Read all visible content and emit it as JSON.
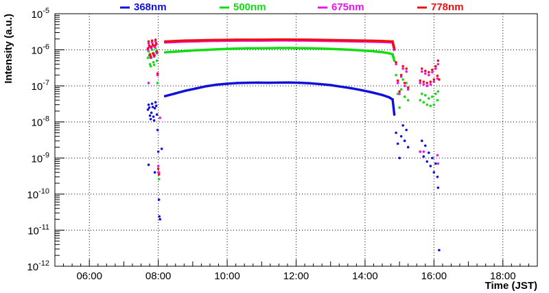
{
  "chart_data": {
    "type": "scatter",
    "xlabel": "Time (JST)",
    "ylabel": "Intensity (a.u.)",
    "x_unit": "hour",
    "xlim": [
      5.0,
      19.0
    ],
    "ylim": [
      1e-12,
      1e-05
    ],
    "y_scale": "log",
    "grid": true,
    "legend_position": "top",
    "x_ticks": [
      {
        "value": 6,
        "label": "06:00"
      },
      {
        "value": 8,
        "label": "08:00"
      },
      {
        "value": 10,
        "label": "10:00"
      },
      {
        "value": 12,
        "label": "12:00"
      },
      {
        "value": 14,
        "label": "14:00"
      },
      {
        "value": 16,
        "label": "16:00"
      },
      {
        "value": 18,
        "label": "18:00"
      }
    ],
    "y_ticks": [
      {
        "value": 1e-12,
        "base": "10",
        "exp": "-12"
      },
      {
        "value": 1e-11,
        "base": "10",
        "exp": "-11"
      },
      {
        "value": 1e-10,
        "base": "10",
        "exp": "-10"
      },
      {
        "value": 1e-09,
        "base": "10",
        "exp": "-9"
      },
      {
        "value": 1e-08,
        "base": "10",
        "exp": "-8"
      },
      {
        "value": 1e-07,
        "base": "10",
        "exp": "-7"
      },
      {
        "value": 1e-06,
        "base": "10",
        "exp": "-6"
      },
      {
        "value": 1e-05,
        "base": "10",
        "exp": "-5"
      }
    ],
    "series": [
      {
        "name": "368nm",
        "color": "#1010dd",
        "points": [
          [
            7.7,
            2.2e-08
          ],
          [
            7.72,
            3e-08
          ],
          [
            7.74,
            2.5e-08
          ],
          [
            7.76,
            1.5e-08
          ],
          [
            7.78,
            1.2e-08
          ],
          [
            7.8,
            1.8e-08
          ],
          [
            7.82,
            3.2e-08
          ],
          [
            7.84,
            2.6e-08
          ],
          [
            7.86,
            1.4e-08
          ],
          [
            7.88,
            1.1e-08
          ],
          [
            7.9,
            2.4e-08
          ],
          [
            7.92,
            3.5e-08
          ],
          [
            7.94,
            2.8e-08
          ],
          [
            7.96,
            1.6e-08
          ],
          [
            7.98,
            6e-09
          ],
          [
            8.0,
            1.5e-09
          ],
          [
            8.02,
            7e-11
          ],
          [
            8.03,
            2.4e-11
          ],
          [
            8.05,
            2e-11
          ],
          [
            7.72,
            6.5e-10
          ],
          [
            7.9,
            4e-10
          ],
          [
            8.1,
            1.8e-09
          ],
          [
            8.2,
            5.2e-08
          ],
          [
            8.5,
            6.2e-08
          ],
          [
            8.8,
            7.4e-08
          ],
          [
            9.1,
            8.5e-08
          ],
          [
            9.4,
            9.8e-08
          ],
          [
            9.7,
            1.08e-07
          ],
          [
            10.0,
            1.15e-07
          ],
          [
            10.3,
            1.2e-07
          ],
          [
            10.6,
            1.22e-07
          ],
          [
            10.9,
            1.23e-07
          ],
          [
            11.2,
            1.22e-07
          ],
          [
            11.5,
            1.23e-07
          ],
          [
            11.8,
            1.24e-07
          ],
          [
            12.1,
            1.22e-07
          ],
          [
            12.4,
            1.18e-07
          ],
          [
            12.7,
            1.12e-07
          ],
          [
            13.0,
            1.05e-07
          ],
          [
            13.3,
            9.5e-08
          ],
          [
            13.6,
            8.6e-08
          ],
          [
            13.9,
            7.6e-08
          ],
          [
            14.2,
            6.6e-08
          ],
          [
            14.5,
            5.6e-08
          ],
          [
            14.7,
            4.8e-08
          ],
          [
            14.8,
            4.2e-08
          ],
          [
            14.85,
            1.6e-08
          ],
          [
            14.9,
            5e-09
          ],
          [
            14.95,
            2.5e-09
          ],
          [
            15.0,
            1e-09
          ],
          [
            15.05,
            4e-09
          ],
          [
            15.1,
            8e-09
          ],
          [
            15.15,
            3e-09
          ],
          [
            15.2,
            6e-09
          ],
          [
            15.25,
            2e-09
          ],
          [
            15.6,
            1.5e-09
          ],
          [
            15.65,
            3e-09
          ],
          [
            15.7,
            1.1e-09
          ],
          [
            15.75,
            2.2e-09
          ],
          [
            15.8,
            8e-10
          ],
          [
            15.85,
            1.4e-09
          ],
          [
            15.9,
            6e-10
          ],
          [
            15.95,
            1e-09
          ],
          [
            16.0,
            4e-10
          ],
          [
            16.05,
            7e-10
          ],
          [
            16.1,
            3e-10
          ],
          [
            16.12,
            1.5e-10
          ],
          [
            16.15,
            2.8e-12
          ]
        ]
      },
      {
        "name": "500nm",
        "color": "#10dd10",
        "points": [
          [
            7.7,
            6e-07
          ],
          [
            7.72,
            9e-07
          ],
          [
            7.74,
            7e-07
          ],
          [
            7.76,
            4e-07
          ],
          [
            7.78,
            3.5e-07
          ],
          [
            7.8,
            6e-07
          ],
          [
            7.82,
            1e-06
          ],
          [
            7.84,
            8e-07
          ],
          [
            7.86,
            4.5e-07
          ],
          [
            7.88,
            3.8e-07
          ],
          [
            7.9,
            7e-07
          ],
          [
            7.92,
            1.1e-06
          ],
          [
            7.94,
            9e-07
          ],
          [
            7.96,
            5e-07
          ],
          [
            7.98,
            1.2e-07
          ],
          [
            8.0,
            4e-10
          ],
          [
            8.02,
            2.6e-10
          ],
          [
            8.2,
            8.5e-07
          ],
          [
            8.5,
            8.9e-07
          ],
          [
            8.8,
            9.3e-07
          ],
          [
            9.1,
            9.7e-07
          ],
          [
            9.4,
            1e-06
          ],
          [
            9.7,
            1.03e-06
          ],
          [
            10.0,
            1.06e-06
          ],
          [
            10.3,
            1.08e-06
          ],
          [
            10.6,
            1.1e-06
          ],
          [
            10.9,
            1.1e-06
          ],
          [
            11.2,
            1.11e-06
          ],
          [
            11.5,
            1.12e-06
          ],
          [
            11.8,
            1.12e-06
          ],
          [
            12.1,
            1.11e-06
          ],
          [
            12.4,
            1.1e-06
          ],
          [
            12.7,
            1.08e-06
          ],
          [
            13.0,
            1.06e-06
          ],
          [
            13.3,
            1.03e-06
          ],
          [
            13.6,
            1e-06
          ],
          [
            13.9,
            9.6e-07
          ],
          [
            14.2,
            9.2e-07
          ],
          [
            14.5,
            8.6e-07
          ],
          [
            14.7,
            8e-07
          ],
          [
            14.8,
            7.5e-07
          ],
          [
            14.85,
            5e-07
          ],
          [
            14.9,
            2e-07
          ],
          [
            14.95,
            6e-08
          ],
          [
            15.0,
            2.5e-08
          ],
          [
            15.05,
            8e-08
          ],
          [
            15.1,
            1.5e-07
          ],
          [
            15.15,
            5e-08
          ],
          [
            15.2,
            1.2e-07
          ],
          [
            15.25,
            4e-08
          ],
          [
            15.6,
            4e-08
          ],
          [
            15.65,
            6e-08
          ],
          [
            15.7,
            3.5e-08
          ],
          [
            15.75,
            5.5e-08
          ],
          [
            15.8,
            3e-08
          ],
          [
            15.85,
            4.5e-08
          ],
          [
            15.9,
            2.8e-08
          ],
          [
            15.95,
            5e-08
          ],
          [
            16.0,
            3e-08
          ],
          [
            16.05,
            6e-08
          ],
          [
            16.1,
            4e-08
          ],
          [
            16.12,
            7e-08
          ]
        ]
      },
      {
        "name": "675nm",
        "color": "#ee10ee",
        "points": [
          [
            7.7,
            1e-06
          ],
          [
            7.72,
            1.5e-06
          ],
          [
            7.74,
            1.2e-06
          ],
          [
            7.76,
            7e-07
          ],
          [
            7.78,
            6e-07
          ],
          [
            7.8,
            1.1e-06
          ],
          [
            7.82,
            1.6e-06
          ],
          [
            7.84,
            1.3e-06
          ],
          [
            7.86,
            7.5e-07
          ],
          [
            7.88,
            6.5e-07
          ],
          [
            7.9,
            1.2e-06
          ],
          [
            7.92,
            1.7e-06
          ],
          [
            7.94,
            1.4e-06
          ],
          [
            7.96,
            8e-07
          ],
          [
            7.98,
            2e-07
          ],
          [
            8.0,
            6e-10
          ],
          [
            8.02,
            4e-10
          ],
          [
            7.72,
            1.2e-07
          ],
          [
            8.05,
            1.3e-08
          ],
          [
            8.2,
            1.6e-06
          ],
          [
            8.5,
            1.65e-06
          ],
          [
            8.8,
            1.7e-06
          ],
          [
            9.1,
            1.72e-06
          ],
          [
            9.4,
            1.75e-06
          ],
          [
            9.7,
            1.77e-06
          ],
          [
            10.0,
            1.78e-06
          ],
          [
            10.3,
            1.8e-06
          ],
          [
            10.6,
            1.8e-06
          ],
          [
            10.9,
            1.8e-06
          ],
          [
            11.2,
            1.81e-06
          ],
          [
            11.5,
            1.82e-06
          ],
          [
            11.8,
            1.82e-06
          ],
          [
            12.1,
            1.81e-06
          ],
          [
            12.4,
            1.8e-06
          ],
          [
            12.7,
            1.78e-06
          ],
          [
            13.0,
            1.76e-06
          ],
          [
            13.3,
            1.74e-06
          ],
          [
            13.6,
            1.72e-06
          ],
          [
            13.9,
            1.7e-06
          ],
          [
            14.2,
            1.68e-06
          ],
          [
            14.5,
            1.65e-06
          ],
          [
            14.7,
            1.62e-06
          ],
          [
            14.8,
            1.6e-06
          ],
          [
            14.85,
            1e-06
          ],
          [
            14.9,
            4e-07
          ],
          [
            14.95,
            1.2e-07
          ],
          [
            15.0,
            6e-08
          ],
          [
            15.05,
            1.8e-07
          ],
          [
            15.1,
            3e-07
          ],
          [
            15.15,
            1e-07
          ],
          [
            15.2,
            2.5e-07
          ],
          [
            15.25,
            8e-08
          ],
          [
            15.6,
            1.5e-09
          ],
          [
            15.7,
            1.5e-09
          ],
          [
            16.1,
            1.2e-09
          ],
          [
            16.12,
            7e-10
          ],
          [
            15.6,
            1.2e-07
          ],
          [
            15.65,
            2.5e-07
          ],
          [
            15.7,
            1.1e-07
          ],
          [
            15.75,
            2.2e-07
          ],
          [
            15.8,
            1e-07
          ],
          [
            15.85,
            2e-07
          ],
          [
            15.9,
            1.1e-07
          ],
          [
            15.95,
            2.4e-07
          ],
          [
            16.0,
            1.3e-07
          ],
          [
            16.05,
            3e-07
          ],
          [
            16.1,
            1.6e-07
          ],
          [
            16.12,
            4e-07
          ]
        ]
      },
      {
        "name": "778nm",
        "color": "#ee1010",
        "points": [
          [
            7.7,
            1.1e-06
          ],
          [
            7.72,
            1.7e-06
          ],
          [
            7.74,
            1.3e-06
          ],
          [
            7.76,
            7.5e-07
          ],
          [
            7.78,
            6.5e-07
          ],
          [
            7.8,
            1.2e-06
          ],
          [
            7.82,
            1.8e-06
          ],
          [
            7.84,
            1.4e-06
          ],
          [
            7.86,
            8e-07
          ],
          [
            7.88,
            7e-07
          ],
          [
            7.9,
            1.3e-06
          ],
          [
            7.92,
            1.9e-06
          ],
          [
            7.94,
            1.5e-06
          ],
          [
            7.96,
            9e-07
          ],
          [
            7.98,
            2.2e-07
          ],
          [
            8.0,
            5e-10
          ],
          [
            8.02,
            3.5e-10
          ],
          [
            8.2,
            1.7e-06
          ],
          [
            8.5,
            1.75e-06
          ],
          [
            8.8,
            1.8e-06
          ],
          [
            9.1,
            1.82e-06
          ],
          [
            9.4,
            1.85e-06
          ],
          [
            9.7,
            1.87e-06
          ],
          [
            10.0,
            1.88e-06
          ],
          [
            10.3,
            1.9e-06
          ],
          [
            10.6,
            1.9e-06
          ],
          [
            10.9,
            1.9e-06
          ],
          [
            11.2,
            1.91e-06
          ],
          [
            11.5,
            1.92e-06
          ],
          [
            11.8,
            1.92e-06
          ],
          [
            12.1,
            1.91e-06
          ],
          [
            12.4,
            1.9e-06
          ],
          [
            12.7,
            1.88e-06
          ],
          [
            13.0,
            1.86e-06
          ],
          [
            13.3,
            1.84e-06
          ],
          [
            13.6,
            1.82e-06
          ],
          [
            13.9,
            1.8e-06
          ],
          [
            14.2,
            1.78e-06
          ],
          [
            14.5,
            1.75e-06
          ],
          [
            14.7,
            1.72e-06
          ],
          [
            14.8,
            1.7e-06
          ],
          [
            14.85,
            1.1e-06
          ],
          [
            14.9,
            4.5e-07
          ],
          [
            14.95,
            1.4e-07
          ],
          [
            15.0,
            7e-08
          ],
          [
            15.05,
            2e-07
          ],
          [
            15.1,
            3.5e-07
          ],
          [
            15.15,
            1.2e-07
          ],
          [
            15.2,
            3e-07
          ],
          [
            15.25,
            9e-08
          ],
          [
            15.6,
            1.4e-07
          ],
          [
            15.65,
            3e-07
          ],
          [
            15.7,
            1.3e-07
          ],
          [
            15.75,
            2.6e-07
          ],
          [
            15.8,
            1.2e-07
          ],
          [
            15.85,
            2.4e-07
          ],
          [
            15.9,
            1.3e-07
          ],
          [
            15.95,
            2.8e-07
          ],
          [
            16.0,
            1.5e-07
          ],
          [
            16.05,
            3.5e-07
          ],
          [
            16.1,
            1.9e-07
          ],
          [
            16.12,
            5e-07
          ],
          [
            16.15,
            1.5e-07
          ]
        ]
      }
    ]
  }
}
